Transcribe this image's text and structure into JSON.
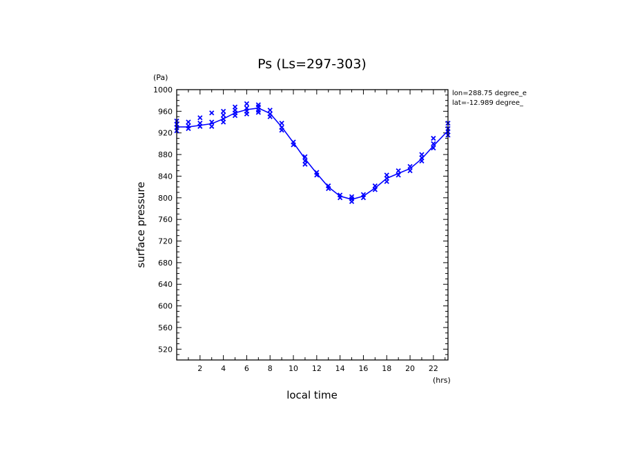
{
  "chart_data": {
    "type": "line",
    "title": "Ps (Ls=297-303)",
    "xlabel": "local time",
    "ylabel": "surface pressure",
    "x_unit": "(hrs)",
    "y_unit": "(Pa)",
    "xlim": [
      0,
      23.25
    ],
    "ylim": [
      500,
      1000
    ],
    "x_ticks": [
      2,
      4,
      6,
      8,
      10,
      12,
      14,
      16,
      18,
      20,
      22
    ],
    "y_ticks": [
      520,
      560,
      600,
      640,
      680,
      720,
      760,
      800,
      840,
      880,
      920,
      960,
      1000
    ],
    "grid": false,
    "annotations": [
      "lon=288.75 degree_e",
      "lat=-12.989 degree_"
    ],
    "color": "#0000ff",
    "mean_line": {
      "x": [
        0,
        1,
        2,
        3,
        4,
        5,
        6,
        7,
        8,
        9,
        10,
        11,
        12,
        13,
        14,
        15,
        16,
        17,
        18,
        19,
        20,
        21,
        22,
        23.25
      ],
      "y": [
        931,
        931,
        934,
        937,
        946,
        957,
        963,
        966,
        956,
        931,
        902,
        872,
        845,
        820,
        803,
        797,
        803,
        818,
        836,
        845,
        854,
        872,
        896,
        924
      ]
    },
    "scatter_points": {
      "x": [
        0,
        0,
        0,
        0,
        1,
        1,
        1,
        2,
        2,
        2,
        3,
        3,
        3,
        4,
        4,
        4,
        4,
        5,
        5,
        5,
        5,
        6,
        6,
        6,
        6,
        7,
        7,
        7,
        7,
        8,
        8,
        8,
        9,
        9,
        9,
        10,
        10,
        11,
        11,
        11,
        12,
        12,
        13,
        13,
        14,
        14,
        15,
        15,
        15,
        16,
        16,
        17,
        17,
        18,
        18,
        18,
        19,
        19,
        20,
        20,
        21,
        21,
        21,
        22,
        22,
        22,
        23.25,
        23.25,
        23.25,
        23.25
      ],
      "y": [
        942,
        936,
        930,
        924,
        940,
        933,
        928,
        948,
        938,
        932,
        957,
        940,
        932,
        960,
        953,
        946,
        940,
        968,
        962,
        957,
        952,
        974,
        966,
        960,
        955,
        972,
        968,
        962,
        958,
        962,
        955,
        950,
        938,
        930,
        925,
        903,
        898,
        876,
        868,
        862,
        847,
        842,
        822,
        817,
        805,
        800,
        802,
        798,
        793,
        806,
        800,
        822,
        815,
        842,
        836,
        830,
        850,
        842,
        858,
        850,
        880,
        874,
        868,
        910,
        900,
        892,
        938,
        928,
        922,
        916
      ]
    }
  }
}
